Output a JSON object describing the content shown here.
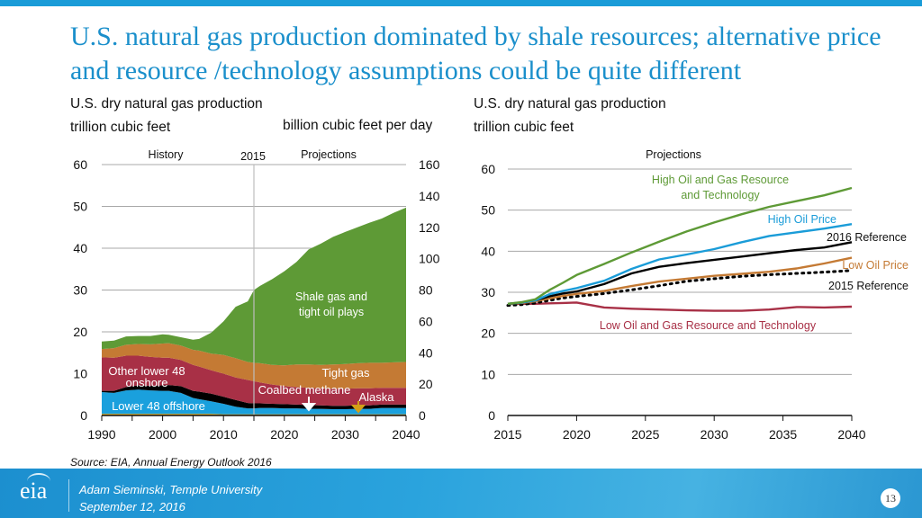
{
  "slide": {
    "title": "U.S. natural gas production dominated by shale resources; alternative price and resource /technology assumptions could be quite different",
    "left_subtitle_1": "U.S. dry natural gas production",
    "left_subtitle_2": "trillion cubic feet",
    "left_right_axis_unit": "billion cubic feet per day",
    "right_subtitle_1": "U.S. dry natural gas production",
    "right_subtitle_2": "trillion cubic feet",
    "source": "Source:  EIA, Annual Energy Outlook 2016",
    "footer": {
      "logo": "eia",
      "presenter": "Adam Sieminski, Temple University",
      "date": "September 12, 2016",
      "page_number": "13"
    },
    "colors": {
      "accent": "#1a9cd8",
      "shale": "#5e9a36",
      "tight_gas": "#c47a34",
      "other_lower48": "#a83046",
      "coalbed": "#000000",
      "offshore": "#1aa0dd",
      "alaska": "#d4a017"
    }
  },
  "chart_data": [
    {
      "type": "area",
      "title": "U.S. dry natural gas production",
      "ylabel": "trillion cubic feet",
      "y2label": "billion cubic feet per day",
      "xlim": [
        1990,
        2040
      ],
      "ylim": [
        0,
        60
      ],
      "y2lim": [
        0,
        160
      ],
      "x_ticks": [
        "1990",
        "2000",
        "2010",
        "2020",
        "2030",
        "2040"
      ],
      "y_ticks": [
        "0",
        "10",
        "20",
        "30",
        "40",
        "50",
        "60"
      ],
      "y2_ticks": [
        "0",
        "20",
        "40",
        "60",
        "80",
        "100",
        "120",
        "140",
        "160"
      ],
      "grid": true,
      "annotations": {
        "history": "History",
        "projections": "Projections",
        "divider": "2015"
      },
      "x": [
        1990,
        1992,
        1994,
        1996,
        1998,
        2000,
        2001,
        2003,
        2005,
        2006,
        2008,
        2010,
        2012,
        2014,
        2015,
        2016,
        2018,
        2020,
        2022,
        2024,
        2026,
        2028,
        2030,
        2032,
        2034,
        2036,
        2038,
        2040
      ],
      "series": [
        {
          "name": "Alaska",
          "label": "Alaska",
          "values": [
            0.4,
            0.4,
            0.4,
            0.4,
            0.4,
            0.4,
            0.4,
            0.4,
            0.4,
            0.4,
            0.4,
            0.3,
            0.3,
            0.3,
            0.3,
            0.3,
            0.3,
            0.3,
            0.3,
            0.3,
            0.3,
            0.3,
            0.3,
            0.3,
            0.3,
            0.3,
            0.3,
            0.3
          ]
        },
        {
          "name": "Lower 48 offshore",
          "label": "Lower 48 offshore",
          "values": [
            5.2,
            5.0,
            5.6,
            5.8,
            5.6,
            5.5,
            5.5,
            5.0,
            3.8,
            3.5,
            3.0,
            2.5,
            1.8,
            1.4,
            1.4,
            1.5,
            1.5,
            1.4,
            1.4,
            1.3,
            1.3,
            1.2,
            1.2,
            1.3,
            1.3,
            1.5,
            1.5,
            1.5
          ]
        },
        {
          "name": "Coalbed methane",
          "label": "Coalbed methane",
          "values": [
            0.3,
            0.5,
            0.8,
            1.0,
            1.1,
            1.3,
            1.4,
            1.6,
            1.7,
            1.8,
            1.8,
            1.7,
            1.6,
            1.3,
            1.2,
            1.1,
            1.0,
            1.0,
            0.9,
            0.9,
            0.8,
            0.8,
            0.8,
            0.8,
            0.8,
            0.8,
            0.8,
            0.8
          ]
        },
        {
          "name": "Other lower 48 onshore",
          "label": "Other lower 48 onshore",
          "values": [
            8.0,
            7.9,
            7.5,
            7.1,
            6.9,
            6.6,
            6.5,
            6.3,
            6.2,
            6.0,
            5.6,
            5.5,
            5.4,
            5.5,
            5.3,
            5.0,
            4.6,
            4.3,
            4.2,
            4.1,
            4.1,
            4.1,
            4.1,
            4.1,
            4.1,
            4.0,
            4.0,
            4.0
          ]
        },
        {
          "name": "Tight gas",
          "label": "Tight gas",
          "values": [
            2.0,
            2.3,
            2.6,
            2.8,
            3.0,
            3.4,
            3.5,
            3.4,
            3.6,
            3.8,
            4.0,
            4.5,
            4.6,
            4.3,
            4.4,
            4.6,
            4.7,
            5.0,
            5.4,
            5.6,
            5.6,
            5.8,
            5.9,
            6.0,
            6.1,
            6.0,
            6.1,
            6.2
          ]
        },
        {
          "name": "Shale gas and tight oil plays",
          "label": "Shale gas and tight oil plays",
          "values": [
            1.8,
            1.8,
            2.0,
            1.9,
            2.0,
            2.2,
            2.0,
            2.0,
            2.4,
            2.8,
            5.0,
            8.0,
            12.3,
            14.5,
            17.4,
            18.5,
            20.5,
            22.5,
            24.5,
            27.5,
            29.0,
            30.5,
            31.6,
            32.5,
            33.5,
            34.5,
            35.8,
            36.9
          ]
        }
      ]
    },
    {
      "type": "line",
      "title": "U.S. dry natural gas production",
      "ylabel": "trillion cubic feet",
      "xlim": [
        2015,
        2040
      ],
      "ylim": [
        0,
        60
      ],
      "x_ticks": [
        "2015",
        "2020",
        "2025",
        "2030",
        "2035",
        "2040"
      ],
      "y_ticks": [
        "0",
        "10",
        "20",
        "30",
        "40",
        "50",
        "60"
      ],
      "grid": true,
      "annotation": "Projections",
      "x": [
        2015,
        2016,
        2017,
        2018,
        2019,
        2020,
        2022,
        2024,
        2026,
        2028,
        2030,
        2032,
        2034,
        2036,
        2038,
        2040
      ],
      "series": [
        {
          "name": "High Oil and Gas Resource and Technology",
          "color": "#5e9a36",
          "dashed": false,
          "values": [
            27.2,
            27.6,
            28.3,
            30.5,
            32.3,
            34.2,
            36.9,
            39.7,
            42.3,
            44.8,
            47.0,
            49.0,
            50.8,
            52.2,
            53.6,
            55.4
          ]
        },
        {
          "name": "High Oil Price",
          "color": "#1a9cd8",
          "dashed": false,
          "values": [
            27.2,
            27.5,
            28.0,
            29.5,
            30.3,
            31.0,
            32.8,
            35.7,
            38.0,
            39.2,
            40.5,
            42.2,
            43.7,
            44.6,
            45.5,
            46.6
          ]
        },
        {
          "name": "2016 Reference",
          "color": "#000000",
          "dashed": false,
          "values": [
            27.2,
            27.5,
            28.0,
            29.0,
            29.7,
            30.2,
            32.0,
            34.6,
            36.2,
            37.1,
            37.9,
            38.7,
            39.5,
            40.3,
            40.9,
            42.2
          ]
        },
        {
          "name": "Low Oil Price",
          "color": "#c47a34",
          "dashed": false,
          "values": [
            27.2,
            27.4,
            27.8,
            28.5,
            29.1,
            29.6,
            30.3,
            31.5,
            32.6,
            33.3,
            34.0,
            34.5,
            35.0,
            35.8,
            37.0,
            38.4
          ]
        },
        {
          "name": "2015 Reference",
          "color": "#000000",
          "dashed": true,
          "values": [
            26.8,
            27.0,
            27.4,
            28.0,
            28.6,
            29.0,
            29.7,
            30.6,
            31.6,
            32.7,
            33.3,
            33.9,
            34.3,
            34.6,
            34.9,
            35.3
          ]
        },
        {
          "name": "Low Oil and Gas Resource and Technology",
          "color": "#a83046",
          "dashed": false,
          "values": [
            27.2,
            27.2,
            27.2,
            27.3,
            27.4,
            27.5,
            26.3,
            26.0,
            25.8,
            25.6,
            25.5,
            25.5,
            25.8,
            26.4,
            26.3,
            26.5
          ]
        }
      ]
    }
  ]
}
